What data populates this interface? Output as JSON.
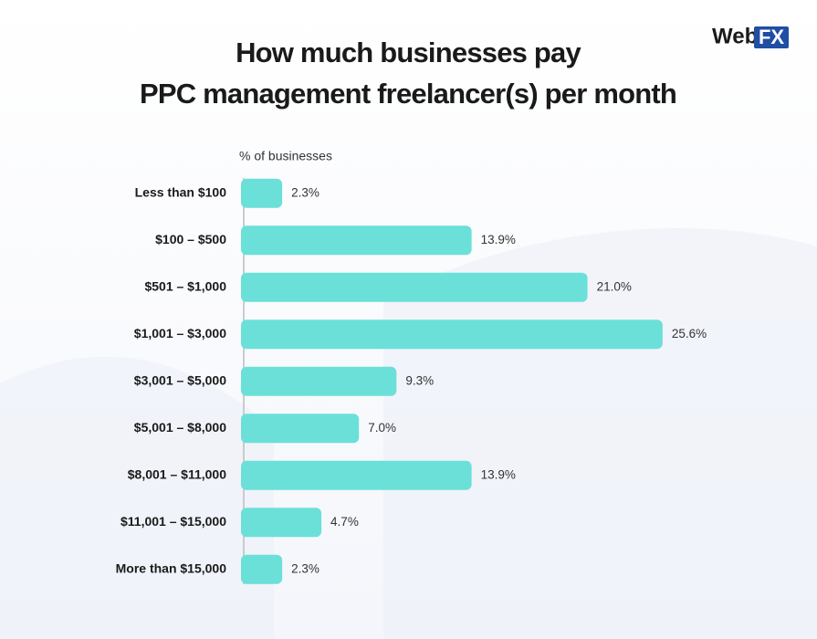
{
  "brand": {
    "text": "Web",
    "badge": "FX"
  },
  "chart_data": {
    "type": "bar",
    "orientation": "horizontal",
    "title": [
      "How much businesses pay",
      "PPC management freelancer(s) per month"
    ],
    "x_label": "% of businesses",
    "categories": [
      "Less than $100",
      "$100 – $500",
      "$501 – $1,000",
      "$1,001 – $3,000",
      "$3,001 – $5,000",
      "$5,001 – $8,000",
      "$8,001 – $11,000",
      "$11,001 – $15,000",
      "More than $15,000"
    ],
    "values": [
      2.3,
      13.9,
      21.0,
      25.6,
      9.3,
      7.0,
      13.9,
      4.7,
      2.3
    ],
    "value_labels": [
      "2.3%",
      "13.9%",
      "21.0%",
      "25.6%",
      "9.3%",
      "7.0%",
      "13.9%",
      "4.7%",
      "2.3%"
    ],
    "color": "#6ae0d9",
    "xlim": [
      0,
      26
    ]
  }
}
